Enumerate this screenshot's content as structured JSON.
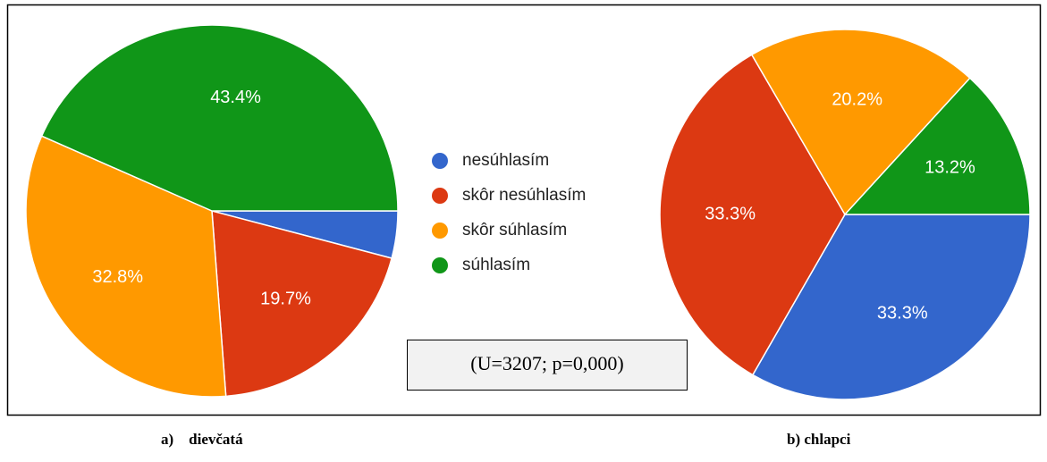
{
  "chart_data": [
    {
      "type": "pie",
      "caption": "a)    dievčatá",
      "categories": [
        "nesúhlasím",
        "skôr nesúhlasím",
        "skôr súhlasím",
        "súhlasím"
      ],
      "colors": [
        "#3366cc",
        "#dc3912",
        "#ff9900",
        "#109618"
      ],
      "values": [
        4.1,
        19.7,
        32.8,
        43.4
      ],
      "value_labels": [
        null,
        "19.7%",
        "32.8%",
        "43.4%"
      ]
    },
    {
      "type": "pie",
      "caption": "b) chlapci",
      "values": [
        33.3,
        33.3,
        20.2,
        13.2
      ],
      "value_labels": [
        "33.3%",
        "33.3%",
        "20.2%",
        "13.2%"
      ]
    }
  ],
  "annotation": "(U=3207; p=0,000)"
}
